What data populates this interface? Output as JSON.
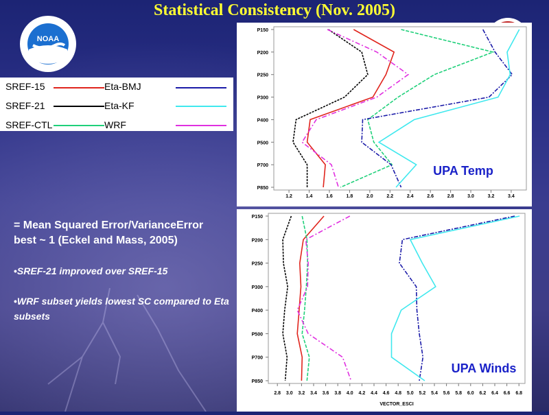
{
  "title": "Statistical Consistency (Nov. 2005)",
  "logo": {
    "text": "NOAA",
    "icon": "noaa-logo-icon"
  },
  "legend": [
    {
      "label": "SREF-15",
      "color": "#e0241c"
    },
    {
      "label": "SREF-21",
      "color": "#000000"
    },
    {
      "label": "SREF-CTL",
      "color": "#1fd07a"
    },
    {
      "label": "Eta-BMJ",
      "color": "#1a1aa8"
    },
    {
      "label": "Eta-KF",
      "color": "#3fe8ee"
    },
    {
      "label": "WRF",
      "color": "#e030e0"
    }
  ],
  "notes": {
    "line1": "= Mean Squared Error/VarianceError",
    "line2": "best ~ 1 (Eckel and Mass, 2005)",
    "bullet1": "SREF-21 improved over SREF-15",
    "bullet2_line1": "WRF subset yields lowest SC compared to Eta",
    "bullet2_line2": "subsets",
    "bullet_marker": "•"
  },
  "chart_data": [
    {
      "type": "line",
      "title": "UPA Temp",
      "xlabel": "",
      "ylabel": "",
      "xlim": [
        1.05,
        3.55
      ],
      "xticks": [
        "1.2",
        "1.4",
        "1.6",
        "1.8",
        "2.0",
        "2.2",
        "2.4",
        "2.6",
        "2.8",
        "3.0",
        "3.2",
        "3.4"
      ],
      "categories": [
        "P150",
        "P200",
        "P250",
        "P300",
        "P400",
        "P500",
        "P700",
        "P850"
      ],
      "series": [
        {
          "name": "SREF-15",
          "values": [
            1.84,
            2.24,
            2.16,
            2.03,
            1.41,
            1.38,
            1.56,
            1.54
          ]
        },
        {
          "name": "SREF-21",
          "values": [
            1.59,
            1.92,
            1.98,
            1.75,
            1.27,
            1.24,
            1.38,
            1.38
          ]
        },
        {
          "name": "SREF-CTL",
          "values": [
            2.31,
            3.22,
            2.64,
            2.28,
            1.98,
            2.04,
            2.22,
            1.71
          ]
        },
        {
          "name": "Eta-BMJ",
          "values": [
            3.12,
            3.24,
            3.41,
            3.18,
            1.93,
            1.92,
            2.21,
            2.31
          ]
        },
        {
          "name": "Eta-KF",
          "values": [
            3.48,
            3.36,
            3.39,
            3.27,
            2.44,
            2.09,
            2.46,
            2.26
          ]
        },
        {
          "name": "WRF",
          "values": [
            1.58,
            2.07,
            2.38,
            2.07,
            1.47,
            1.33,
            1.62,
            1.69
          ]
        }
      ]
    },
    {
      "type": "line",
      "title": "UPA Winds",
      "xlabel": "VECTOR_ESCI",
      "ylabel": "",
      "xlim": [
        2.65,
        6.9
      ],
      "xticks": [
        "2.8",
        "3.0",
        "3.2",
        "3.4",
        "3.6",
        "3.8",
        "4.0",
        "4.2",
        "4.4",
        "4.6",
        "4.8",
        "5.0",
        "5.2",
        "5.4",
        "5.6",
        "5.8",
        "6.0",
        "6.2",
        "6.4",
        "6.6",
        "6.8"
      ],
      "categories": [
        "P150",
        "P200",
        "P250",
        "P300",
        "P400",
        "P500",
        "P700",
        "P850"
      ],
      "series": [
        {
          "name": "SREF-15",
          "values": [
            3.57,
            3.23,
            3.17,
            3.19,
            3.16,
            3.13,
            3.21,
            3.2
          ]
        },
        {
          "name": "SREF-21",
          "values": [
            3.03,
            2.89,
            2.9,
            2.97,
            2.92,
            2.89,
            2.96,
            2.93
          ]
        },
        {
          "name": "SREF-CTL",
          "values": [
            3.21,
            3.29,
            3.3,
            3.28,
            3.25,
            3.21,
            3.33,
            3.29
          ]
        },
        {
          "name": "Eta-BMJ",
          "values": [
            6.73,
            4.87,
            4.82,
            5.1,
            5.11,
            5.15,
            5.21,
            5.15
          ]
        },
        {
          "name": "Eta-KF",
          "values": [
            6.81,
            5.0,
            5.2,
            5.42,
            4.85,
            4.69,
            4.69,
            5.24
          ]
        },
        {
          "name": "WRF",
          "values": [
            4.0,
            3.27,
            3.31,
            3.3,
            3.13,
            3.31,
            3.88,
            4.02
          ]
        }
      ]
    }
  ]
}
